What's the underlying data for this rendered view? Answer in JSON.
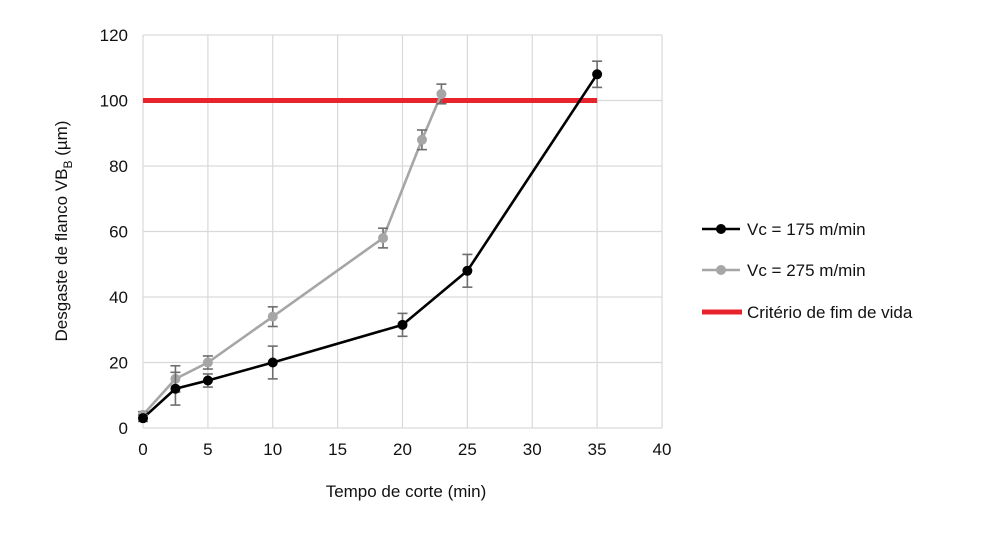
{
  "chart_data": {
    "type": "line",
    "title": "",
    "xlabel": "Tempo de corte (min)",
    "ylabel": "Desgaste de flanco VB",
    "ylabel_subscript": "B",
    "ylabel_unit": " (µm)",
    "xlim": [
      0,
      40
    ],
    "ylim": [
      0,
      120
    ],
    "x_ticks": [
      0,
      5,
      10,
      15,
      20,
      25,
      30,
      35,
      40
    ],
    "y_ticks": [
      0,
      20,
      40,
      60,
      80,
      100,
      120
    ],
    "grid": true,
    "legend_position": "right",
    "series": [
      {
        "name": "Vc = 275 m/min",
        "color": "#a6a6a6",
        "points": [
          {
            "x": 0,
            "y": 4,
            "err": 1
          },
          {
            "x": 2.5,
            "y": 15,
            "err": 4
          },
          {
            "x": 5,
            "y": 20,
            "err": 2
          },
          {
            "x": 10,
            "y": 34,
            "err": 3
          },
          {
            "x": 18.5,
            "y": 58,
            "err": 3
          },
          {
            "x": 21.5,
            "y": 88,
            "err": 3
          },
          {
            "x": 23,
            "y": 102,
            "err": 3
          }
        ]
      },
      {
        "name": "Vc = 175 m/min",
        "color": "#000000",
        "points": [
          {
            "x": 0,
            "y": 3,
            "err": 1
          },
          {
            "x": 2.5,
            "y": 12,
            "err": 5
          },
          {
            "x": 5,
            "y": 14.5,
            "err": 2
          },
          {
            "x": 10,
            "y": 20,
            "err": 5
          },
          {
            "x": 20,
            "y": 31.5,
            "err": 3.5
          },
          {
            "x": 25,
            "y": 48,
            "err": 5
          },
          {
            "x": 35,
            "y": 108,
            "err": 4
          }
        ]
      }
    ],
    "threshold": {
      "name": "Critério de fim de vida",
      "color": "#e8232b",
      "y": 100,
      "x_start": 0,
      "x_end": 35
    },
    "legend": [
      {
        "label": "Vc = 175 m/min",
        "color": "#000000",
        "kind": "line-marker"
      },
      {
        "label": "Vc = 275 m/min",
        "color": "#a6a6a6",
        "kind": "line-marker"
      },
      {
        "label": "Critério de fim de vida",
        "color": "#e8232b",
        "kind": "thick-line"
      }
    ]
  }
}
